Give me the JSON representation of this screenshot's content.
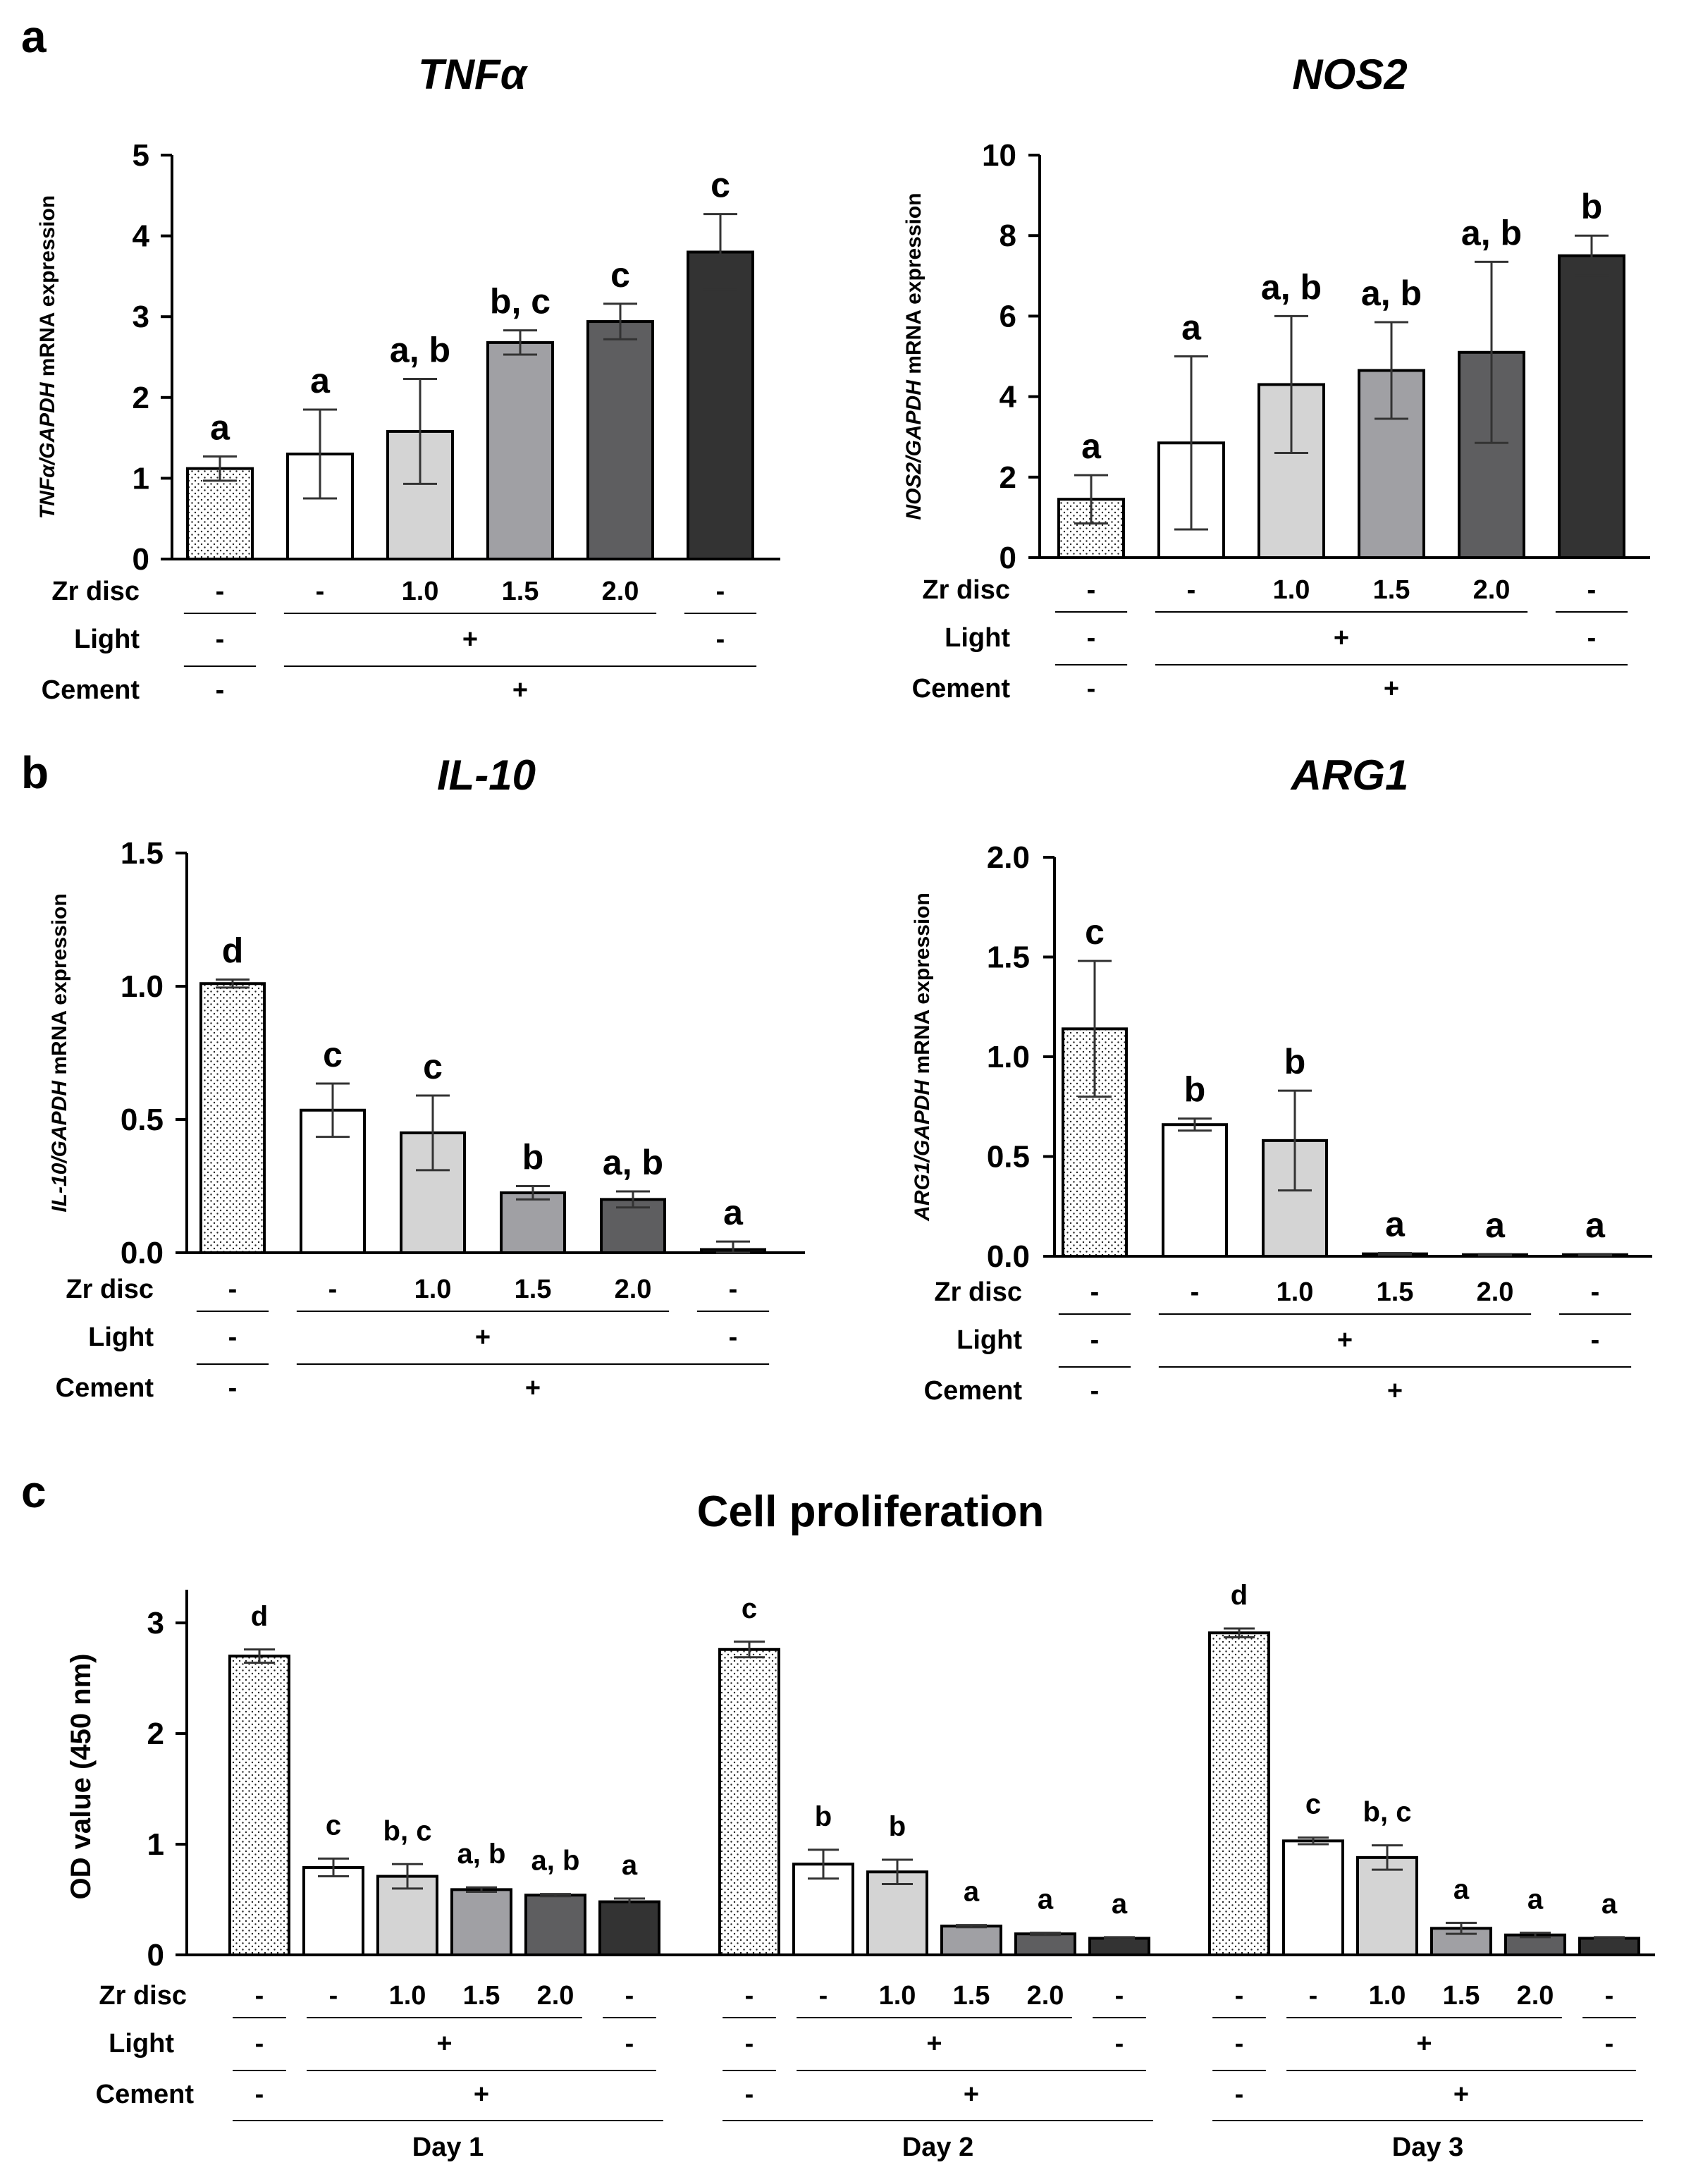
{
  "panel_labels": {
    "a": "a",
    "b": "b",
    "c": "c"
  },
  "colors": {
    "dotted": "#ffffff",
    "white": "#ffffff",
    "light_gray": "#d4d4d4",
    "mid_gray": "#a0a0a4",
    "dark_gray": "#5e5e60",
    "black_bar": "#333333"
  },
  "chart_data": [
    {
      "id": "tnfa",
      "type": "bar",
      "title": "TNFα",
      "ylabel_italic": "TNFα/GAPDH",
      "ylabel_rest": " mRNA expression",
      "ylim": [
        0,
        5
      ],
      "yticks": [
        0,
        1,
        2,
        3,
        4,
        5
      ],
      "values": [
        1.12,
        1.3,
        1.58,
        2.68,
        2.94,
        3.8
      ],
      "errors": [
        0.15,
        0.55,
        0.65,
        0.15,
        0.22,
        0.47
      ],
      "significance": [
        "a",
        "a",
        "a, b",
        "b, c",
        "c",
        "c"
      ],
      "conditions": {
        "zr_label": "Zr disc",
        "zr": [
          "-",
          "-",
          "1.0",
          "1.5",
          "2.0",
          "-"
        ],
        "light_label": "Light",
        "light": [
          "-",
          "+",
          "-"
        ],
        "cement_label": "Cement",
        "cement": [
          "-",
          "+"
        ]
      }
    },
    {
      "id": "nos2",
      "type": "bar",
      "title": "NOS2",
      "ylabel_italic": "NOS2/GAPDH",
      "ylabel_rest": " mRNA expression",
      "ylim": [
        0,
        10
      ],
      "yticks": [
        0,
        2,
        4,
        6,
        8,
        10
      ],
      "values": [
        1.45,
        2.85,
        4.3,
        4.65,
        5.1,
        7.5
      ],
      "errors": [
        0.6,
        2.15,
        1.7,
        1.2,
        2.25,
        0.5
      ],
      "significance": [
        "a",
        "a",
        "a, b",
        "a, b",
        "a, b",
        "b"
      ],
      "conditions": {
        "zr_label": "Zr disc",
        "zr": [
          "-",
          "-",
          "1.0",
          "1.5",
          "2.0",
          "-"
        ],
        "light_label": "Light",
        "light": [
          "-",
          "+",
          "-"
        ],
        "cement_label": "Cement",
        "cement": [
          "-",
          "+"
        ]
      }
    },
    {
      "id": "il10",
      "type": "bar",
      "title": "IL-10",
      "ylabel_italic": "IL-10/GAPDH",
      "ylabel_rest": " mRNA expression",
      "ylim": [
        0,
        1.5
      ],
      "yticks": [
        "0.0",
        "0.5",
        "1.0",
        "1.5"
      ],
      "values": [
        1.01,
        0.535,
        0.45,
        0.225,
        0.2,
        0.012
      ],
      "errors": [
        0.015,
        0.1,
        0.14,
        0.025,
        0.03,
        0.03
      ],
      "significance": [
        "d",
        "c",
        "c",
        "b",
        "a, b",
        "a"
      ],
      "conditions": {
        "zr_label": "Zr disc",
        "zr": [
          "-",
          "-",
          "1.0",
          "1.5",
          "2.0",
          "-"
        ],
        "light_label": "Light",
        "light": [
          "-",
          "+",
          "-"
        ],
        "cement_label": "Cement",
        "cement": [
          "-",
          "+"
        ]
      }
    },
    {
      "id": "arg1",
      "type": "bar",
      "title": "ARG1",
      "ylabel_italic": "ARG1/GAPDH",
      "ylabel_rest": " mRNA expression",
      "ylim": [
        0,
        2.0
      ],
      "yticks": [
        "0.0",
        "0.5",
        "1.0",
        "1.5",
        "2.0"
      ],
      "values": [
        1.14,
        0.66,
        0.58,
        0.012,
        0.008,
        0.008
      ],
      "errors": [
        0.34,
        0.03,
        0.25,
        0.004,
        0.003,
        0.003
      ],
      "significance": [
        "c",
        "b",
        "b",
        "a",
        "a",
        "a"
      ],
      "conditions": {
        "zr_label": "Zr disc",
        "zr": [
          "-",
          "-",
          "1.0",
          "1.5",
          "2.0",
          "-"
        ],
        "light_label": "Light",
        "light": [
          "-",
          "+",
          "-"
        ],
        "cement_label": "Cement",
        "cement": [
          "-",
          "+"
        ]
      }
    },
    {
      "id": "prolif",
      "type": "bar",
      "title": "Cell proliferation",
      "ylabel": "OD value (450 nm)",
      "ylim": [
        0,
        3.3
      ],
      "yticks": [
        0,
        1,
        2,
        3
      ],
      "groups": [
        {
          "name": "Day 1",
          "values": [
            2.7,
            0.79,
            0.71,
            0.59,
            0.54,
            0.48
          ],
          "errors": [
            0.06,
            0.08,
            0.11,
            0.02,
            0.01,
            0.03
          ],
          "significance": [
            "d",
            "c",
            "b, c",
            "a, b",
            "a, b",
            "a"
          ]
        },
        {
          "name": "Day 2",
          "values": [
            2.76,
            0.82,
            0.75,
            0.26,
            0.19,
            0.15
          ],
          "errors": [
            0.07,
            0.13,
            0.11,
            0.01,
            0.01,
            0.01
          ],
          "significance": [
            "c",
            "b",
            "b",
            "a",
            "a",
            "a"
          ]
        },
        {
          "name": "Day 3",
          "values": [
            2.91,
            1.03,
            0.88,
            0.24,
            0.18,
            0.15
          ],
          "errors": [
            0.04,
            0.03,
            0.11,
            0.05,
            0.02,
            0.01
          ],
          "significance": [
            "d",
            "c",
            "b, c",
            "a",
            "a",
            "a"
          ]
        }
      ],
      "conditions": {
        "zr_label": "Zr disc",
        "zr": [
          "-",
          "-",
          "1.0",
          "1.5",
          "2.0",
          "-"
        ],
        "light_label": "Light",
        "light": [
          "-",
          "+",
          "-"
        ],
        "cement_label": "Cement",
        "cement": [
          "-",
          "+"
        ]
      }
    }
  ]
}
